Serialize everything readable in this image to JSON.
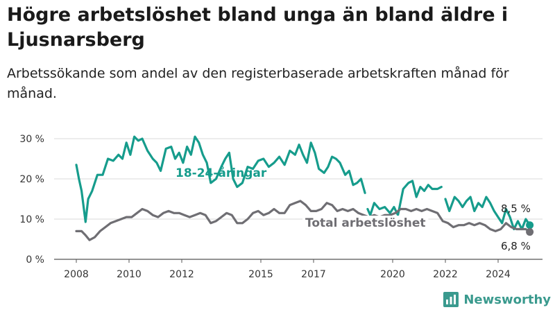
{
  "title": "Högre arbetslöshet bland unga än bland äldre i Ljusnarsberg",
  "subtitle": "Arbetssökande som andel av den registerbaserade arbetskraften månad för månad.",
  "brand": "Newsworthy",
  "chart_data": {
    "type": "line",
    "unit": "%",
    "ylim": [
      0,
      30
    ],
    "yticks": [
      0,
      10,
      20,
      30
    ],
    "ytick_labels": [
      "0 %",
      "10 %",
      "20 %",
      "30 %"
    ],
    "xlim": [
      2008,
      2025.5
    ],
    "xticks": [
      2008,
      2010,
      2012,
      2015,
      2017,
      2020,
      2022,
      2024
    ],
    "xtick_labels": [
      "2008",
      "2010",
      "2012",
      "2015",
      "2017",
      "2020",
      "2022",
      "2024"
    ],
    "grid": "horizontal",
    "series": [
      {
        "name": "18-24-åringar",
        "color": "#169c8c",
        "end_label": "8,5 %",
        "points": [
          [
            2008.0,
            23.5
          ],
          [
            2008.1,
            20.0
          ],
          [
            2008.2,
            17.0
          ],
          [
            2008.35,
            9.3
          ],
          [
            2008.45,
            15.0
          ],
          [
            2008.6,
            17.0
          ],
          [
            2008.8,
            21.0
          ],
          [
            2009.0,
            21.0
          ],
          [
            2009.2,
            25.0
          ],
          [
            2009.4,
            24.5
          ],
          [
            2009.6,
            26.0
          ],
          [
            2009.75,
            25.0
          ],
          [
            2009.9,
            29.0
          ],
          [
            2010.05,
            26.0
          ],
          [
            2010.2,
            30.5
          ],
          [
            2010.35,
            29.5
          ],
          [
            2010.5,
            30.0
          ],
          [
            2010.7,
            27.0
          ],
          [
            2010.9,
            25.0
          ],
          [
            2011.05,
            24.0
          ],
          [
            2011.2,
            22.0
          ],
          [
            2011.4,
            27.5
          ],
          [
            2011.6,
            28.0
          ],
          [
            2011.75,
            25.0
          ],
          [
            2011.9,
            26.5
          ],
          [
            2012.05,
            24.0
          ],
          [
            2012.2,
            28.0
          ],
          [
            2012.35,
            26.0
          ],
          [
            2012.5,
            30.5
          ],
          [
            2012.65,
            29.0
          ],
          [
            2012.8,
            26.0
          ],
          [
            2012.95,
            24.0
          ],
          [
            2013.1,
            19.0
          ],
          [
            2013.3,
            20.0
          ],
          [
            2013.5,
            23.0
          ],
          [
            2013.65,
            25.0
          ],
          [
            2013.8,
            26.5
          ],
          [
            2013.95,
            20.0
          ],
          [
            2014.1,
            18.0
          ],
          [
            2014.3,
            19.0
          ],
          [
            2014.5,
            23.0
          ],
          [
            2014.7,
            22.5
          ],
          [
            2014.9,
            24.5
          ],
          [
            2015.1,
            25.0
          ],
          [
            2015.3,
            23.0
          ],
          [
            2015.5,
            24.0
          ],
          [
            2015.7,
            25.5
          ],
          [
            2015.9,
            23.5
          ],
          [
            2016.1,
            27.0
          ],
          [
            2016.3,
            26.0
          ],
          [
            2016.45,
            28.5
          ],
          [
            2016.6,
            26.0
          ],
          [
            2016.75,
            24.0
          ],
          [
            2016.9,
            29.0
          ],
          [
            2017.05,
            26.5
          ],
          [
            2017.2,
            22.5
          ],
          [
            2017.4,
            21.5
          ],
          [
            2017.55,
            23.0
          ],
          [
            2017.7,
            25.5
          ],
          [
            2017.85,
            25.0
          ],
          [
            2018.0,
            24.0
          ],
          [
            2018.2,
            21.0
          ],
          [
            2018.35,
            22.0
          ],
          [
            2018.5,
            18.5
          ],
          [
            2018.65,
            19.0
          ],
          [
            2018.8,
            20.0
          ],
          [
            2018.95,
            16.5
          ],
          [
            2019.05,
            12.5
          ],
          [
            2019.15,
            11.0
          ],
          [
            2019.3,
            14.0
          ],
          [
            2019.5,
            12.5
          ],
          [
            2019.7,
            13.0
          ],
          [
            2019.9,
            11.5
          ],
          [
            2020.05,
            13.0
          ],
          [
            2020.2,
            11.0
          ],
          [
            2020.4,
            17.5
          ],
          [
            2020.6,
            19.0
          ],
          [
            2020.75,
            19.5
          ],
          [
            2020.9,
            15.5
          ],
          [
            2021.05,
            18.0
          ],
          [
            2021.2,
            17.0
          ],
          [
            2021.35,
            18.5
          ],
          [
            2021.5,
            17.5
          ],
          [
            2021.7,
            17.5
          ],
          [
            2021.85,
            18.0
          ],
          [
            2022.0,
            15.0
          ],
          [
            2022.15,
            12.0
          ],
          [
            2022.35,
            15.5
          ],
          [
            2022.5,
            14.5
          ],
          [
            2022.65,
            13.0
          ],
          [
            2022.8,
            14.5
          ],
          [
            2022.95,
            15.5
          ],
          [
            2023.1,
            12.0
          ],
          [
            2023.25,
            14.0
          ],
          [
            2023.4,
            13.0
          ],
          [
            2023.55,
            15.5
          ],
          [
            2023.7,
            14.0
          ],
          [
            2023.85,
            12.0
          ],
          [
            2024.0,
            10.5
          ],
          [
            2024.15,
            9.0
          ],
          [
            2024.3,
            12.5
          ],
          [
            2024.45,
            10.5
          ],
          [
            2024.6,
            7.5
          ],
          [
            2024.75,
            9.5
          ],
          [
            2024.9,
            7.5
          ],
          [
            2025.05,
            10.0
          ],
          [
            2025.2,
            8.5
          ]
        ],
        "gaps_after_x": [
          2018.95,
          2021.85
        ]
      },
      {
        "name": "Total arbetslöshet",
        "color": "#6f6e73",
        "end_label": "6,8 %",
        "points": [
          [
            2008.0,
            7.0
          ],
          [
            2008.2,
            7.0
          ],
          [
            2008.35,
            6.0
          ],
          [
            2008.5,
            4.8
          ],
          [
            2008.7,
            5.5
          ],
          [
            2008.9,
            7.0
          ],
          [
            2009.1,
            8.0
          ],
          [
            2009.3,
            9.0
          ],
          [
            2009.5,
            9.5
          ],
          [
            2009.7,
            10.0
          ],
          [
            2009.9,
            10.5
          ],
          [
            2010.1,
            10.5
          ],
          [
            2010.3,
            11.5
          ],
          [
            2010.5,
            12.5
          ],
          [
            2010.7,
            12.0
          ],
          [
            2010.9,
            11.0
          ],
          [
            2011.1,
            10.5
          ],
          [
            2011.3,
            11.5
          ],
          [
            2011.5,
            12.0
          ],
          [
            2011.7,
            11.5
          ],
          [
            2011.9,
            11.5
          ],
          [
            2012.1,
            11.0
          ],
          [
            2012.3,
            10.5
          ],
          [
            2012.5,
            11.0
          ],
          [
            2012.7,
            11.5
          ],
          [
            2012.9,
            11.0
          ],
          [
            2013.1,
            9.0
          ],
          [
            2013.3,
            9.5
          ],
          [
            2013.5,
            10.5
          ],
          [
            2013.7,
            11.5
          ],
          [
            2013.9,
            11.0
          ],
          [
            2014.1,
            9.0
          ],
          [
            2014.3,
            9.0
          ],
          [
            2014.5,
            10.0
          ],
          [
            2014.7,
            11.5
          ],
          [
            2014.9,
            12.0
          ],
          [
            2015.1,
            11.0
          ],
          [
            2015.3,
            11.5
          ],
          [
            2015.5,
            12.5
          ],
          [
            2015.7,
            11.5
          ],
          [
            2015.9,
            11.5
          ],
          [
            2016.1,
            13.5
          ],
          [
            2016.3,
            14.0
          ],
          [
            2016.5,
            14.5
          ],
          [
            2016.7,
            13.5
          ],
          [
            2016.9,
            12.0
          ],
          [
            2017.1,
            12.0
          ],
          [
            2017.3,
            12.5
          ],
          [
            2017.5,
            14.0
          ],
          [
            2017.7,
            13.5
          ],
          [
            2017.9,
            12.0
          ],
          [
            2018.1,
            12.5
          ],
          [
            2018.3,
            12.0
          ],
          [
            2018.5,
            12.5
          ],
          [
            2018.7,
            11.5
          ],
          [
            2018.9,
            11.0
          ],
          [
            2019.1,
            10.5
          ],
          [
            2019.3,
            11.0
          ],
          [
            2019.5,
            10.5
          ],
          [
            2019.7,
            11.0
          ],
          [
            2019.9,
            11.0
          ],
          [
            2020.1,
            11.5
          ],
          [
            2020.3,
            12.5
          ],
          [
            2020.5,
            12.5
          ],
          [
            2020.7,
            12.0
          ],
          [
            2020.9,
            12.5
          ],
          [
            2021.1,
            12.0
          ],
          [
            2021.3,
            12.5
          ],
          [
            2021.5,
            12.0
          ],
          [
            2021.7,
            11.5
          ],
          [
            2021.9,
            9.5
          ],
          [
            2022.1,
            9.0
          ],
          [
            2022.3,
            8.0
          ],
          [
            2022.5,
            8.5
          ],
          [
            2022.7,
            8.5
          ],
          [
            2022.9,
            9.0
          ],
          [
            2023.1,
            8.5
          ],
          [
            2023.3,
            9.0
          ],
          [
            2023.5,
            8.5
          ],
          [
            2023.7,
            7.5
          ],
          [
            2023.9,
            7.0
          ],
          [
            2024.1,
            7.5
          ],
          [
            2024.3,
            9.0
          ],
          [
            2024.5,
            8.0
          ],
          [
            2024.7,
            7.5
          ],
          [
            2024.9,
            7.5
          ],
          [
            2025.05,
            7.5
          ],
          [
            2025.2,
            6.8
          ]
        ],
        "gaps_after_x": []
      }
    ]
  }
}
